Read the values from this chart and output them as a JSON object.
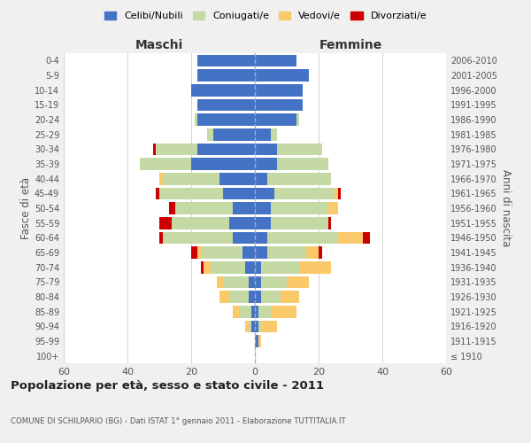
{
  "age_groups": [
    "100+",
    "95-99",
    "90-94",
    "85-89",
    "80-84",
    "75-79",
    "70-74",
    "65-69",
    "60-64",
    "55-59",
    "50-54",
    "45-49",
    "40-44",
    "35-39",
    "30-34",
    "25-29",
    "20-24",
    "15-19",
    "10-14",
    "5-9",
    "0-4"
  ],
  "birth_years": [
    "≤ 1910",
    "1911-1915",
    "1916-1920",
    "1921-1925",
    "1926-1930",
    "1931-1935",
    "1936-1940",
    "1941-1945",
    "1946-1950",
    "1951-1955",
    "1956-1960",
    "1961-1965",
    "1966-1970",
    "1971-1975",
    "1976-1980",
    "1981-1985",
    "1986-1990",
    "1991-1995",
    "1996-2000",
    "2001-2005",
    "2006-2010"
  ],
  "maschi": {
    "celibi": [
      0,
      0,
      1,
      1,
      2,
      2,
      3,
      4,
      7,
      8,
      7,
      10,
      11,
      20,
      18,
      13,
      18,
      18,
      20,
      18,
      18
    ],
    "coniugati": [
      0,
      0,
      1,
      4,
      6,
      8,
      11,
      13,
      22,
      18,
      18,
      20,
      18,
      16,
      13,
      2,
      1,
      0,
      0,
      0,
      0
    ],
    "vedovi": [
      0,
      0,
      1,
      2,
      3,
      2,
      2,
      1,
      0,
      0,
      0,
      0,
      1,
      0,
      0,
      0,
      0,
      0,
      0,
      0,
      0
    ],
    "divorziati": [
      0,
      0,
      0,
      0,
      0,
      0,
      1,
      2,
      1,
      4,
      2,
      1,
      0,
      0,
      1,
      0,
      0,
      0,
      0,
      0,
      0
    ]
  },
  "femmine": {
    "nubili": [
      0,
      1,
      1,
      1,
      2,
      2,
      2,
      4,
      4,
      5,
      5,
      6,
      4,
      7,
      7,
      5,
      13,
      15,
      15,
      17,
      13
    ],
    "coniugate": [
      0,
      0,
      1,
      4,
      6,
      8,
      12,
      12,
      22,
      18,
      18,
      19,
      20,
      16,
      14,
      2,
      1,
      0,
      0,
      0,
      0
    ],
    "vedove": [
      0,
      1,
      5,
      8,
      6,
      7,
      10,
      4,
      8,
      0,
      3,
      1,
      0,
      0,
      0,
      0,
      0,
      0,
      0,
      0,
      0
    ],
    "divorziate": [
      0,
      0,
      0,
      0,
      0,
      0,
      0,
      1,
      2,
      1,
      0,
      1,
      0,
      0,
      0,
      0,
      0,
      0,
      0,
      0,
      0
    ]
  },
  "colors": {
    "celibi": "#4472C4",
    "coniugati": "#C5D9A4",
    "vedovi": "#F9C96A",
    "divorziati": "#CC0000"
  },
  "xlim": 60,
  "title": "Popolazione per età, sesso e stato civile - 2011",
  "subtitle": "COMUNE DI SCHILPARIO (BG) - Dati ISTAT 1° gennaio 2011 - Elaborazione TUTTITALIA.IT",
  "xlabel_left": "Maschi",
  "xlabel_right": "Femmine",
  "ylabel_left": "Fasce di età",
  "ylabel_right": "Anni di nascita",
  "bg_color": "#f0f0f0",
  "plot_bg": "#ffffff",
  "legend_labels": [
    "Celibi/Nubili",
    "Coniugati/e",
    "Vedovi/e",
    "Divorziati/e"
  ]
}
